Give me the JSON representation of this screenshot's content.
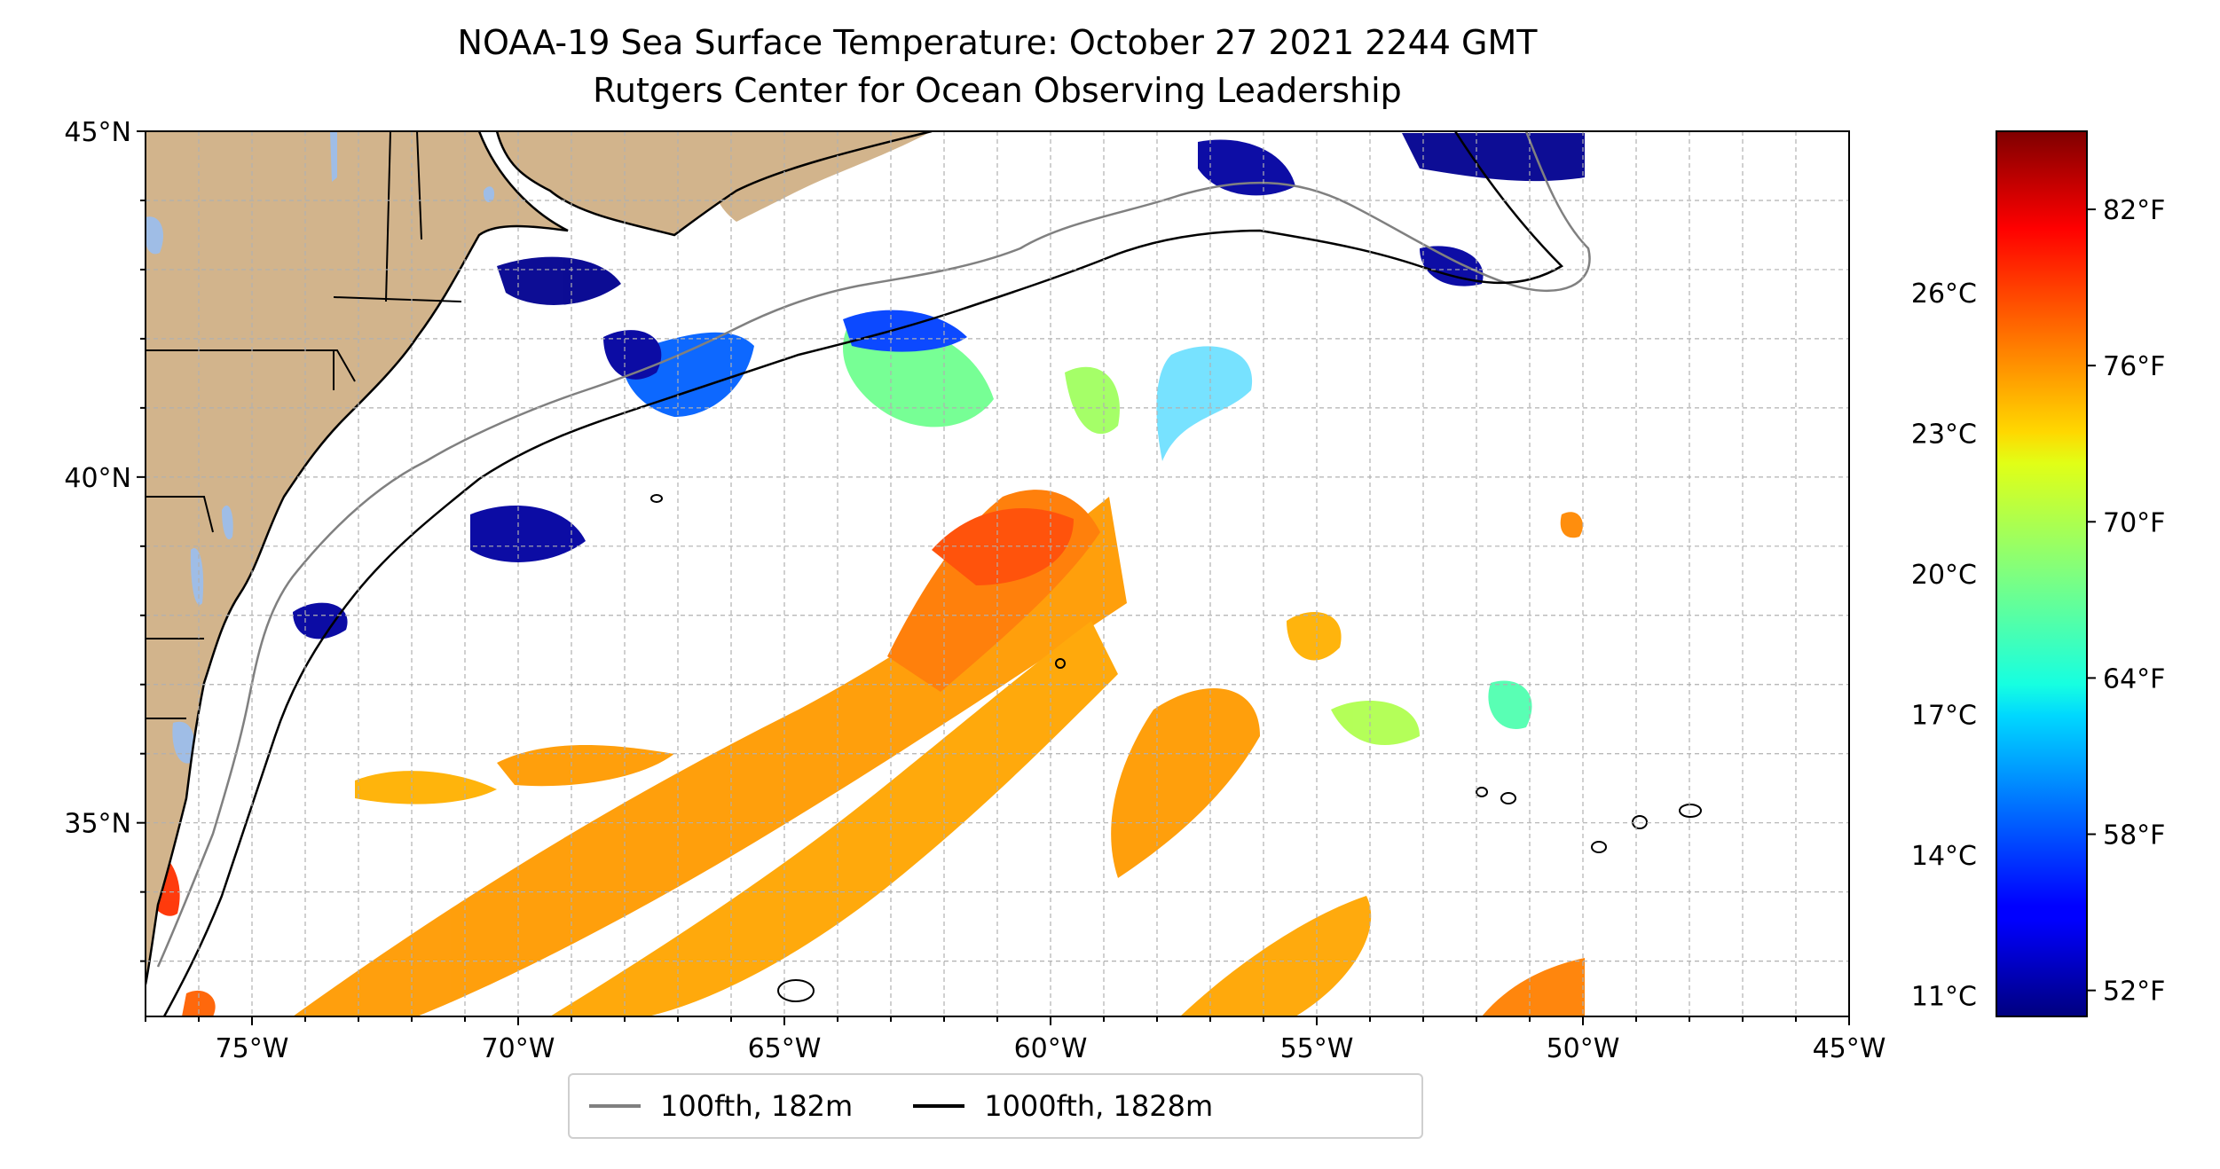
{
  "title": "NOAA-19 Sea Surface Temperature: October 27 2021 2244 GMT",
  "subtitle": "Rutgers Center for Ocean Observing Leadership",
  "map": {
    "lon_range": [
      -77,
      -45
    ],
    "lat_range": [
      32.2,
      45
    ],
    "lon_ticks": [
      {
        "value": -75,
        "label": "75°W"
      },
      {
        "value": -70,
        "label": "70°W"
      },
      {
        "value": -65,
        "label": "65°W"
      },
      {
        "value": -60,
        "label": "60°W"
      },
      {
        "value": -55,
        "label": "55°W"
      },
      {
        "value": -50,
        "label": "50°W"
      },
      {
        "value": -45,
        "label": "45°W"
      }
    ],
    "lat_ticks": [
      {
        "value": 45,
        "label": "45°N"
      },
      {
        "value": 40,
        "label": "40°N"
      },
      {
        "value": 35,
        "label": "35°N"
      }
    ],
    "gridlines": "dashed",
    "land_color": "#d2b48c",
    "lake_color": "#9fbde6"
  },
  "colorbar": {
    "colormap": "jet",
    "range_F": [
      51,
      85
    ],
    "celsius_ticks": [
      {
        "value": 11,
        "label": "11°C"
      },
      {
        "value": 14,
        "label": "14°C"
      },
      {
        "value": 17,
        "label": "17°C"
      },
      {
        "value": 20,
        "label": "20°C"
      },
      {
        "value": 23,
        "label": "23°C"
      },
      {
        "value": 26,
        "label": "26°C"
      }
    ],
    "fahrenheit_ticks": [
      {
        "value": 52,
        "label": "52°F"
      },
      {
        "value": 58,
        "label": "58°F"
      },
      {
        "value": 64,
        "label": "64°F"
      },
      {
        "value": 70,
        "label": "70°F"
      },
      {
        "value": 76,
        "label": "76°F"
      },
      {
        "value": 82,
        "label": "82°F"
      }
    ]
  },
  "legend": {
    "items": [
      {
        "label": "100fth, 182m",
        "color": "#808080"
      },
      {
        "label": "1000fth, 1828m",
        "color": "#000000"
      }
    ]
  }
}
